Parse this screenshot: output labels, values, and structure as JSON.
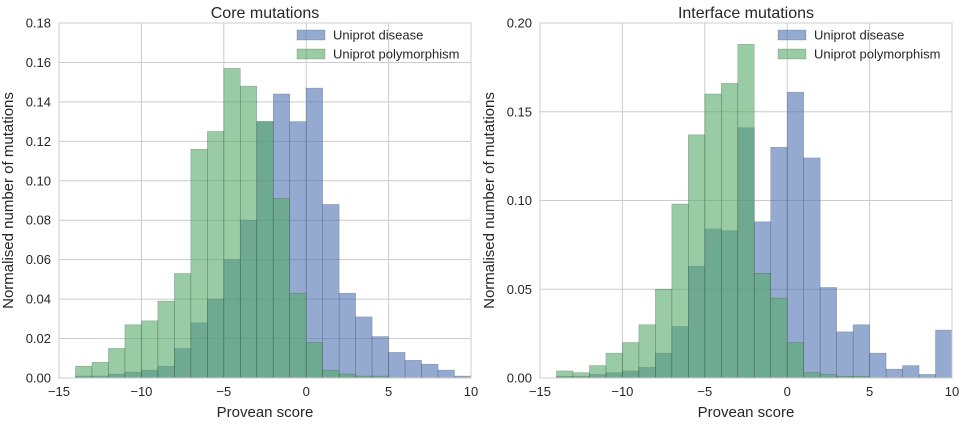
{
  "colors": {
    "disease": "#4c72b0",
    "polymorphism": "#55a868",
    "grid": "#cccccc",
    "text": "#262626"
  },
  "chart_data": [
    {
      "type": "histogram",
      "title": "Core mutations",
      "xlabel": "Provean score",
      "ylabel": "Normalised number of mutations",
      "xlim": [
        -15,
        10
      ],
      "ylim": [
        0,
        0.18
      ],
      "xticks": [
        -15,
        -10,
        -5,
        0,
        5,
        10
      ],
      "xtick_labels": [
        "−15",
        "−10",
        "−5",
        "0",
        "5",
        "10"
      ],
      "yticks": [
        0,
        0.02,
        0.04,
        0.06,
        0.08,
        0.1,
        0.12,
        0.14,
        0.16,
        0.18
      ],
      "ytick_labels": [
        "0.00",
        "0.02",
        "0.04",
        "0.06",
        "0.08",
        "0.10",
        "0.12",
        "0.14",
        "0.16",
        "0.18"
      ],
      "grid": true,
      "legend_position": "top-right",
      "series": [
        {
          "name": "Uniprot disease",
          "color_key": "disease",
          "bin_edges": [
            -14,
            -13,
            -12,
            -11,
            -10,
            -9,
            -8,
            -7,
            -6,
            -5,
            -4,
            -3,
            -2,
            -1,
            0,
            1,
            2,
            3,
            4,
            5,
            6,
            7,
            8,
            9,
            10
          ],
          "values": [
            0.001,
            0.001,
            0.002,
            0.003,
            0.004,
            0.006,
            0.015,
            0.028,
            0.04,
            0.06,
            0.08,
            0.13,
            0.144,
            0.13,
            0.147,
            0.088,
            0.043,
            0.031,
            0.021,
            0.013,
            0.009,
            0.007,
            0.004,
            0.001
          ]
        },
        {
          "name": "Uniprot polymorphism",
          "color_key": "polymorphism",
          "bin_edges": [
            -14,
            -13,
            -12,
            -11,
            -10,
            -9,
            -8,
            -7,
            -6,
            -5,
            -4,
            -3,
            -2,
            -1,
            0,
            1,
            2,
            3,
            4,
            5,
            6,
            7,
            8,
            9,
            10
          ],
          "values": [
            0.006,
            0.008,
            0.015,
            0.027,
            0.029,
            0.039,
            0.053,
            0.116,
            0.125,
            0.157,
            0.148,
            0.13,
            0.091,
            0.043,
            0.018,
            0.004,
            0.002,
            0.001,
            0.001,
            0,
            0,
            0,
            0,
            0
          ]
        }
      ]
    },
    {
      "type": "histogram",
      "title": "Interface mutations",
      "xlabel": "Provean score",
      "ylabel": "Normalised number of mutations",
      "xlim": [
        -15,
        10
      ],
      "ylim": [
        0,
        0.2
      ],
      "xticks": [
        -15,
        -10,
        -5,
        0,
        5,
        10
      ],
      "xtick_labels": [
        "−15",
        "−10",
        "−5",
        "0",
        "5",
        "10"
      ],
      "yticks": [
        0,
        0.05,
        0.1,
        0.15,
        0.2
      ],
      "ytick_labels": [
        "0.00",
        "0.05",
        "0.10",
        "0.15",
        "0.20"
      ],
      "grid": true,
      "legend_position": "top-right",
      "series": [
        {
          "name": "Uniprot disease",
          "color_key": "disease",
          "bin_edges": [
            -14,
            -13,
            -12,
            -11,
            -10,
            -9,
            -8,
            -7,
            -6,
            -5,
            -4,
            -3,
            -2,
            -1,
            0,
            1,
            2,
            3,
            4,
            5,
            6,
            7,
            8,
            9,
            10
          ],
          "values": [
            0.001,
            0.001,
            0.002,
            0.003,
            0.004,
            0.006,
            0.014,
            0.029,
            0.063,
            0.084,
            0.083,
            0.141,
            0.088,
            0.13,
            0.161,
            0.124,
            0.051,
            0.026,
            0.03,
            0.014,
            0.005,
            0.007,
            0.002,
            0.027
          ]
        },
        {
          "name": "Uniprot polymorphism",
          "color_key": "polymorphism",
          "bin_edges": [
            -14,
            -13,
            -12,
            -11,
            -10,
            -9,
            -8,
            -7,
            -6,
            -5,
            -4,
            -3,
            -2,
            -1,
            0,
            1,
            2,
            3,
            4,
            5,
            6,
            7,
            8,
            9,
            10
          ],
          "values": [
            0.004,
            0.003,
            0.007,
            0.014,
            0.02,
            0.03,
            0.05,
            0.098,
            0.137,
            0.16,
            0.166,
            0.188,
            0.059,
            0.045,
            0.02,
            0.003,
            0.002,
            0.001,
            0.001,
            0,
            0,
            0,
            0,
            0
          ]
        }
      ]
    }
  ]
}
